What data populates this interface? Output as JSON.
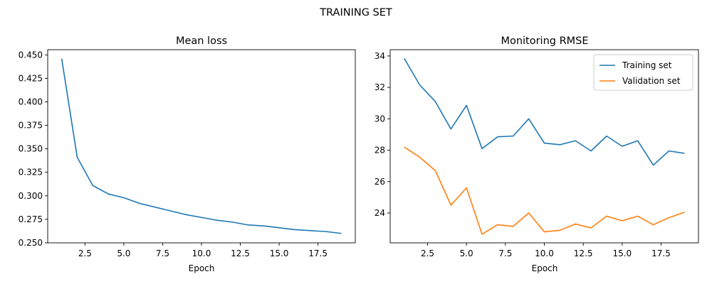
{
  "figure_title": "TRAINING SET",
  "chart_data": [
    {
      "type": "line",
      "title": "Mean loss",
      "xlabel": "Epoch",
      "ylabel": "",
      "xlim": [
        0.1,
        19.9
      ],
      "ylim": [
        0.25,
        0.4555
      ],
      "xticks": [
        2.5,
        5.0,
        7.5,
        10.0,
        12.5,
        15.0,
        17.5
      ],
      "xtick_labels": [
        "2.5",
        "5.0",
        "7.5",
        "10.0",
        "12.5",
        "15.0",
        "17.5"
      ],
      "yticks": [
        0.25,
        0.275,
        0.3,
        0.325,
        0.35,
        0.375,
        0.4,
        0.425,
        0.45
      ],
      "ytick_labels": [
        "0.250",
        "0.275",
        "0.300",
        "0.325",
        "0.350",
        "0.375",
        "0.400",
        "0.425",
        "0.450"
      ],
      "grid": false,
      "x": [
        1,
        2,
        3,
        4,
        5,
        6,
        7,
        8,
        9,
        10,
        11,
        12,
        13,
        14,
        15,
        16,
        17,
        18,
        19
      ],
      "series": [
        {
          "color": "#1f77b4",
          "values": [
            0.446,
            0.341,
            0.311,
            0.302,
            0.298,
            0.292,
            0.288,
            0.284,
            0.28,
            0.277,
            0.274,
            0.272,
            0.269,
            0.268,
            0.266,
            0.264,
            0.263,
            0.262,
            0.26
          ]
        }
      ]
    },
    {
      "type": "line",
      "title": "Monitoring RMSE",
      "xlabel": "Epoch",
      "ylabel": "",
      "xlim": [
        0.1,
        19.9
      ],
      "ylim": [
        22.1,
        34.4
      ],
      "xticks": [
        2.5,
        5.0,
        7.5,
        10.0,
        12.5,
        15.0,
        17.5
      ],
      "xtick_labels": [
        "2.5",
        "5.0",
        "7.5",
        "10.0",
        "12.5",
        "15.0",
        "17.5"
      ],
      "yticks": [
        24,
        26,
        28,
        30,
        32,
        34
      ],
      "ytick_labels": [
        "24",
        "26",
        "28",
        "30",
        "32",
        "34"
      ],
      "grid": false,
      "legend_position": "top-right",
      "x": [
        1,
        2,
        3,
        4,
        5,
        6,
        7,
        8,
        9,
        10,
        11,
        12,
        13,
        14,
        15,
        16,
        17,
        18,
        19
      ],
      "series": [
        {
          "name": "Training set",
          "color": "#1f77b4",
          "values": [
            33.85,
            32.15,
            31.1,
            29.35,
            30.85,
            28.1,
            28.85,
            28.9,
            30.0,
            28.45,
            28.35,
            28.6,
            27.95,
            28.9,
            28.25,
            28.6,
            27.05,
            27.95,
            27.8
          ]
        },
        {
          "name": "Validation set",
          "color": "#ff7f0e",
          "values": [
            28.2,
            27.55,
            26.7,
            24.5,
            25.6,
            22.65,
            23.25,
            23.15,
            24.0,
            22.8,
            22.9,
            23.3,
            23.05,
            23.8,
            23.5,
            23.8,
            23.25,
            23.7,
            24.05
          ]
        }
      ]
    }
  ]
}
